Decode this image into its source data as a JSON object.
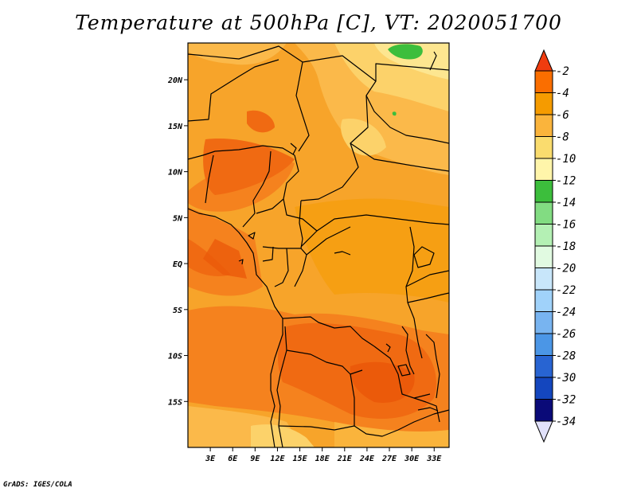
{
  "title": "Temperature at 500hPa [C], VT: 2020051700",
  "footer": "GrADS: IGES/COLA",
  "map": {
    "region": "Central Africa",
    "projection": "lat-lon",
    "lon_range": [
      0,
      35
    ],
    "lat_range": [
      -20,
      24
    ],
    "lat_ticks": [
      {
        "lat": 20,
        "label": "20N"
      },
      {
        "lat": 15,
        "label": "15N"
      },
      {
        "lat": 10,
        "label": "10N"
      },
      {
        "lat": 5,
        "label": "5N"
      },
      {
        "lat": 0,
        "label": "EQ"
      },
      {
        "lat": -5,
        "label": "5S"
      },
      {
        "lat": -10,
        "label": "10S"
      },
      {
        "lat": -15,
        "label": "15S"
      }
    ],
    "lon_ticks": [
      {
        "lon": 3,
        "label": "3E"
      },
      {
        "lon": 6,
        "label": "6E"
      },
      {
        "lon": 9,
        "label": "9E"
      },
      {
        "lon": 12,
        "label": "12E"
      },
      {
        "lon": 15,
        "label": "15E"
      },
      {
        "lon": 18,
        "label": "18E"
      },
      {
        "lon": 21,
        "label": "21E"
      },
      {
        "lon": 24,
        "label": "24E"
      },
      {
        "lon": 27,
        "label": "27E"
      },
      {
        "lon": 30,
        "label": "30E"
      },
      {
        "lon": 33,
        "label": "33E"
      }
    ]
  },
  "colorbar": {
    "levels": [
      "-2",
      "-4",
      "-6",
      "-8",
      "-10",
      "-12",
      "-14",
      "-16",
      "-18",
      "-20",
      "-22",
      "-24",
      "-26",
      "-28",
      "-30",
      "-32",
      "-34"
    ],
    "colors": [
      "#f03c0f",
      "#fa6e00",
      "#f59b00",
      "#fab43c",
      "#fadc6e",
      "#fff5aa",
      "#3cbe3c",
      "#82dc82",
      "#b4f0b4",
      "#e1fae1",
      "#c8e6fa",
      "#a0d2fa",
      "#78b4f0",
      "#4b96e6",
      "#2864d2",
      "#1446be",
      "#0a0a78",
      "#e1e1fa"
    ]
  },
  "colors": {
    "frame": "#000000",
    "border": "#000000",
    "label": "#000000"
  }
}
